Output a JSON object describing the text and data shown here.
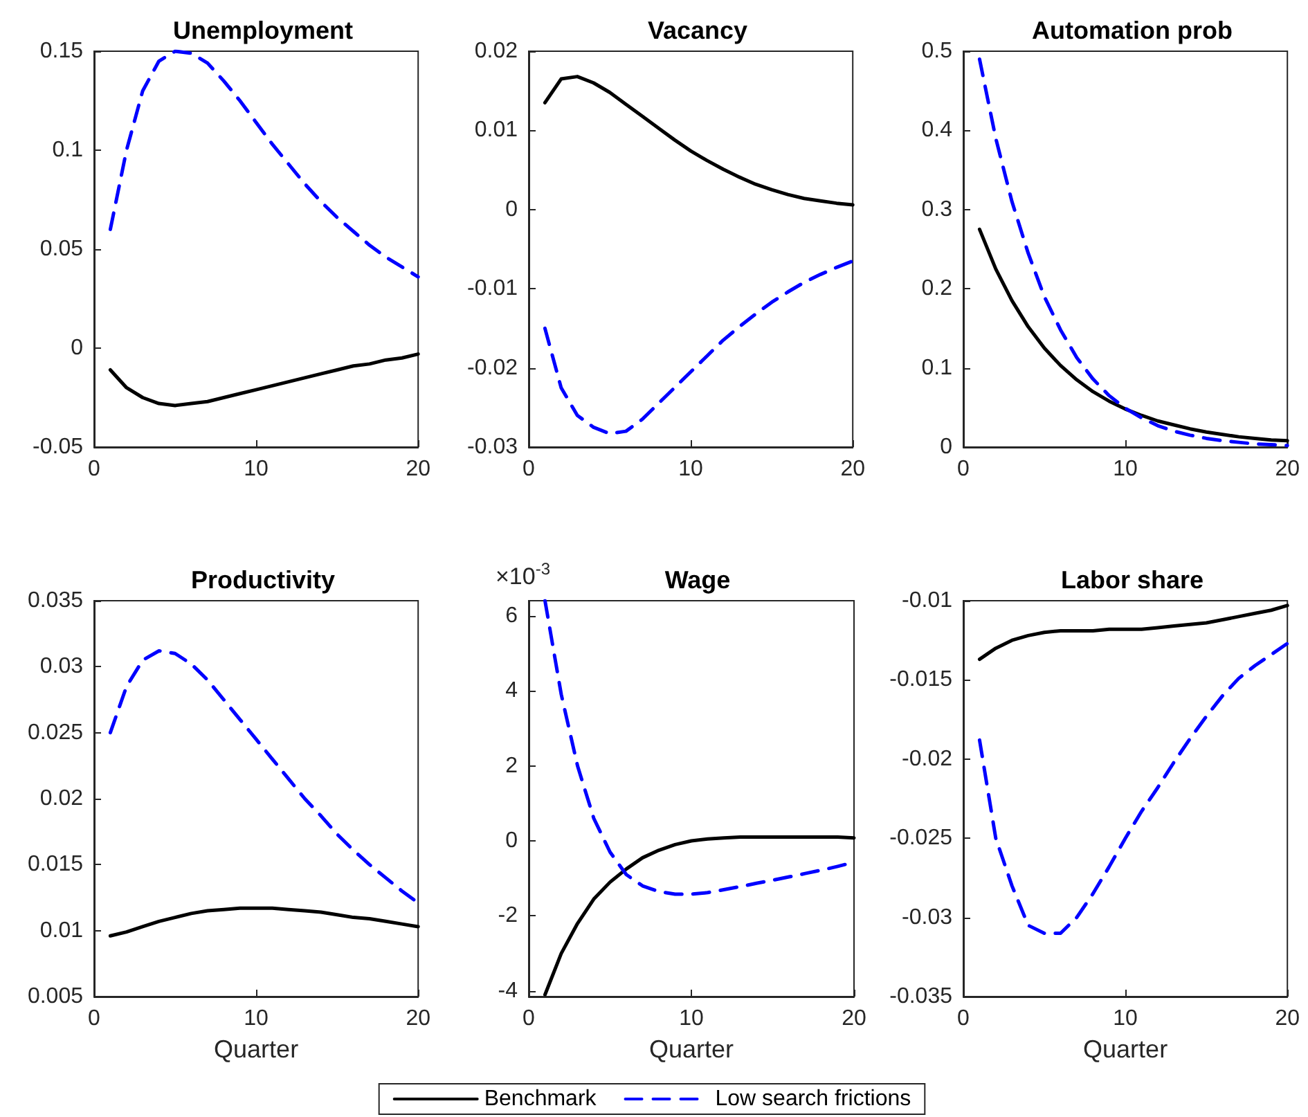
{
  "chart_data": [
    {
      "type": "line",
      "title": "Unemployment",
      "x": [
        1,
        2,
        3,
        4,
        5,
        6,
        7,
        8,
        9,
        10,
        11,
        12,
        13,
        14,
        15,
        16,
        17,
        18,
        19,
        20
      ],
      "xlim": [
        0,
        20
      ],
      "xticks": [
        0,
        10,
        20
      ],
      "ylim": [
        -0.05,
        0.15
      ],
      "yticks": [
        -0.05,
        0,
        0.05,
        0.1,
        0.15
      ],
      "series": [
        {
          "color": "#000000",
          "line_style": "solid",
          "values": [
            -0.011,
            -0.02,
            -0.025,
            -0.028,
            -0.029,
            -0.028,
            -0.027,
            -0.025,
            -0.023,
            -0.021,
            -0.019,
            -0.017,
            -0.015,
            -0.013,
            -0.011,
            -0.009,
            -0.008,
            -0.006,
            -0.005,
            -0.003
          ]
        },
        {
          "color": "#0000ff",
          "line_style": "dashed",
          "values": [
            0.06,
            0.1,
            0.13,
            0.145,
            0.15,
            0.149,
            0.144,
            0.135,
            0.125,
            0.114,
            0.103,
            0.093,
            0.083,
            0.074,
            0.066,
            0.059,
            0.052,
            0.046,
            0.041,
            0.036
          ]
        }
      ]
    },
    {
      "type": "line",
      "title": "Vacancy",
      "x": [
        1,
        2,
        3,
        4,
        5,
        6,
        7,
        8,
        9,
        10,
        11,
        12,
        13,
        14,
        15,
        16,
        17,
        18,
        19,
        20
      ],
      "xlim": [
        0,
        20
      ],
      "xticks": [
        0,
        10,
        20
      ],
      "ylim": [
        -0.03,
        0.02
      ],
      "yticks": [
        -0.03,
        -0.02,
        -0.01,
        0,
        0.01,
        0.02
      ],
      "series": [
        {
          "color": "#000000",
          "line_style": "solid",
          "values": [
            0.0135,
            0.0165,
            0.0168,
            0.016,
            0.0148,
            0.0133,
            0.0118,
            0.0103,
            0.0088,
            0.0074,
            0.0062,
            0.0051,
            0.0041,
            0.0032,
            0.0025,
            0.0019,
            0.0014,
            0.0011,
            0.0008,
            0.0006
          ]
        },
        {
          "color": "#0000ff",
          "line_style": "dashed",
          "values": [
            -0.015,
            -0.0225,
            -0.026,
            -0.0275,
            -0.0283,
            -0.028,
            -0.0265,
            -0.0245,
            -0.0225,
            -0.0205,
            -0.0185,
            -0.0165,
            -0.0148,
            -0.0132,
            -0.0117,
            -0.0104,
            -0.0092,
            -0.0082,
            -0.0073,
            -0.0065
          ]
        }
      ]
    },
    {
      "type": "line",
      "title": "Automation prob",
      "x": [
        1,
        2,
        3,
        4,
        5,
        6,
        7,
        8,
        9,
        10,
        11,
        12,
        13,
        14,
        15,
        16,
        17,
        18,
        19,
        20
      ],
      "xlim": [
        0,
        20
      ],
      "xticks": [
        0,
        10,
        20
      ],
      "ylim": [
        0,
        0.5
      ],
      "yticks": [
        0,
        0.1,
        0.2,
        0.3,
        0.4,
        0.5
      ],
      "series": [
        {
          "color": "#000000",
          "line_style": "solid",
          "values": [
            0.275,
            0.225,
            0.185,
            0.152,
            0.125,
            0.103,
            0.085,
            0.07,
            0.058,
            0.048,
            0.04,
            0.033,
            0.028,
            0.023,
            0.019,
            0.016,
            0.013,
            0.011,
            0.009,
            0.008
          ]
        },
        {
          "color": "#0000ff",
          "line_style": "dashed",
          "values": [
            0.49,
            0.39,
            0.31,
            0.245,
            0.19,
            0.148,
            0.113,
            0.086,
            0.065,
            0.049,
            0.037,
            0.027,
            0.02,
            0.015,
            0.011,
            0.008,
            0.006,
            0.004,
            0.003,
            0.002
          ]
        }
      ]
    },
    {
      "type": "line",
      "title": "Productivity",
      "xlabel": "Quarter",
      "x": [
        1,
        2,
        3,
        4,
        5,
        6,
        7,
        8,
        9,
        10,
        11,
        12,
        13,
        14,
        15,
        16,
        17,
        18,
        19,
        20
      ],
      "xlim": [
        0,
        20
      ],
      "xticks": [
        0,
        10,
        20
      ],
      "ylim": [
        0.005,
        0.035
      ],
      "yticks": [
        0.005,
        0.01,
        0.015,
        0.02,
        0.025,
        0.03,
        0.035
      ],
      "series": [
        {
          "color": "#000000",
          "line_style": "solid",
          "values": [
            0.0096,
            0.0099,
            0.0103,
            0.0107,
            0.011,
            0.0113,
            0.0115,
            0.0116,
            0.0117,
            0.0117,
            0.0117,
            0.0116,
            0.0115,
            0.0114,
            0.0112,
            0.011,
            0.0109,
            0.0107,
            0.0105,
            0.0103
          ]
        },
        {
          "color": "#0000ff",
          "line_style": "dashed",
          "values": [
            0.025,
            0.0285,
            0.0305,
            0.0312,
            0.031,
            0.0302,
            0.029,
            0.0275,
            0.026,
            0.0245,
            0.023,
            0.0215,
            0.02,
            0.0187,
            0.0173,
            0.0161,
            0.015,
            0.014,
            0.013,
            0.0121
          ]
        }
      ]
    },
    {
      "type": "line",
      "title": "Wage",
      "xlabel": "Quarter",
      "annotations": [
        "×10$^{-3}$"
      ],
      "legend": "bottom",
      "x": [
        1,
        2,
        3,
        4,
        5,
        6,
        7,
        8,
        9,
        10,
        11,
        12,
        13,
        14,
        15,
        16,
        17,
        18,
        19,
        20
      ],
      "xlim": [
        0,
        20
      ],
      "xticks": [
        0,
        10,
        20
      ],
      "ylim": [
        -4.15,
        6.4
      ],
      "yticks": [
        -4,
        -2,
        0,
        2,
        4,
        6
      ],
      "series": [
        {
          "name": "Benchmark",
          "color": "#000000",
          "line_style": "solid",
          "values": [
            -4.1,
            -3.0,
            -2.2,
            -1.55,
            -1.1,
            -0.75,
            -0.45,
            -0.25,
            -0.1,
            0,
            0.05,
            0.08,
            0.1,
            0.1,
            0.1,
            0.1,
            0.1,
            0.1,
            0.1,
            0.08
          ]
        },
        {
          "name": "Low search frictions",
          "color": "#0000ff",
          "line_style": "dashed",
          "values": [
            6.4,
            3.9,
            2.0,
            0.6,
            -0.3,
            -0.9,
            -1.2,
            -1.35,
            -1.42,
            -1.42,
            -1.38,
            -1.3,
            -1.22,
            -1.13,
            -1.05,
            -0.96,
            -0.87,
            -0.78,
            -0.68,
            -0.57
          ]
        }
      ]
    },
    {
      "type": "line",
      "title": "Labor share",
      "xlabel": "Quarter",
      "x": [
        1,
        2,
        3,
        4,
        5,
        6,
        7,
        8,
        9,
        10,
        11,
        12,
        13,
        14,
        15,
        16,
        17,
        18,
        19,
        20
      ],
      "xlim": [
        0,
        20
      ],
      "xticks": [
        0,
        10,
        20
      ],
      "ylim": [
        -0.035,
        -0.01
      ],
      "yticks": [
        -0.035,
        -0.03,
        -0.025,
        -0.02,
        -0.015,
        -0.01
      ],
      "series": [
        {
          "color": "#000000",
          "line_style": "solid",
          "values": [
            -0.0137,
            -0.013,
            -0.0125,
            -0.0122,
            -0.012,
            -0.0119,
            -0.0119,
            -0.0119,
            -0.0118,
            -0.0118,
            -0.0118,
            -0.0117,
            -0.0116,
            -0.0115,
            -0.0114,
            -0.0112,
            -0.011,
            -0.0108,
            -0.0106,
            -0.0103
          ]
        },
        {
          "color": "#0000ff",
          "line_style": "dashed",
          "values": [
            -0.0188,
            -0.025,
            -0.028,
            -0.0305,
            -0.031,
            -0.031,
            -0.03,
            -0.0285,
            -0.0268,
            -0.025,
            -0.0233,
            -0.0218,
            -0.0202,
            -0.0187,
            -0.0173,
            -0.016,
            -0.0149,
            -0.0141,
            -0.0134,
            -0.0127
          ]
        }
      ]
    }
  ]
}
